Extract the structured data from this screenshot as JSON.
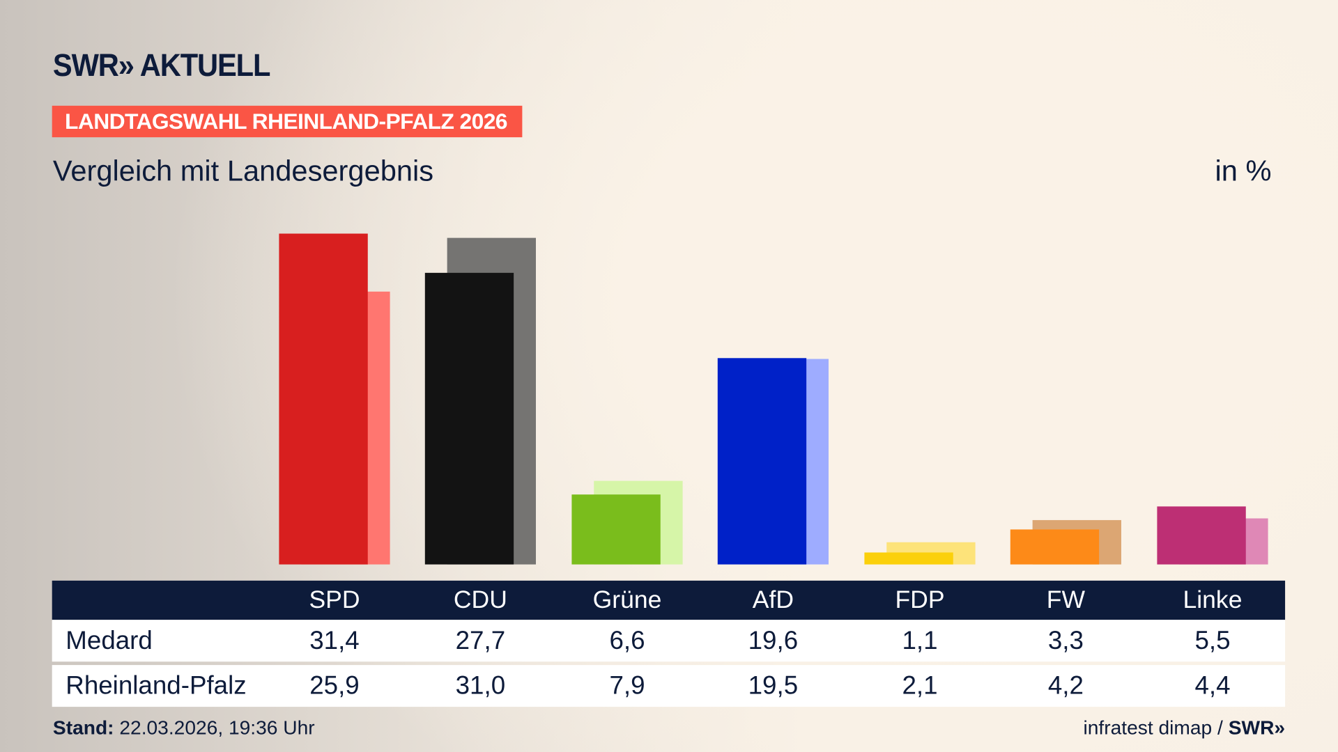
{
  "header": {
    "logo": "SWR» AKTUELL",
    "tag": "LANDTAGSWAHL RHEINLAND-PFALZ 2026",
    "subtitle": "Vergleich mit Landesergebnis",
    "unit": "in %"
  },
  "chart_data": {
    "type": "bar",
    "categories": [
      "SPD",
      "CDU",
      "Grüne",
      "AfD",
      "FDP",
      "FW",
      "Linke"
    ],
    "series": [
      {
        "name": "Medard",
        "values": [
          31.4,
          27.7,
          6.6,
          19.6,
          1.1,
          3.3,
          5.5
        ],
        "display": [
          "31,4",
          "27,7",
          "6,6",
          "19,6",
          "1,1",
          "3,3",
          "5,5"
        ],
        "colors": [
          "#d81f1f",
          "#131313",
          "#7abd1c",
          "#0021c8",
          "#fbd00b",
          "#fd8a18",
          "#bd2f74"
        ]
      },
      {
        "name": "Rheinland-Pfalz",
        "values": [
          25.9,
          31.0,
          7.9,
          19.5,
          2.1,
          4.2,
          4.4
        ],
        "display": [
          "25,9",
          "31,0",
          "7,9",
          "19,5",
          "2,1",
          "4,2",
          "4,4"
        ],
        "colors": [
          "#ff7670",
          "#757472",
          "#d6f5a8",
          "#9eacff",
          "#fde37a",
          "#dca673",
          "#df88b6"
        ]
      }
    ],
    "ylim": [
      0,
      31.4
    ],
    "grid": false,
    "legend": "table-below"
  },
  "footer": {
    "stand_label": "Stand:",
    "stand_value": "22.03.2026, 19:36 Uhr",
    "source": "infratest dimap /",
    "source_logo": "SWR»"
  }
}
